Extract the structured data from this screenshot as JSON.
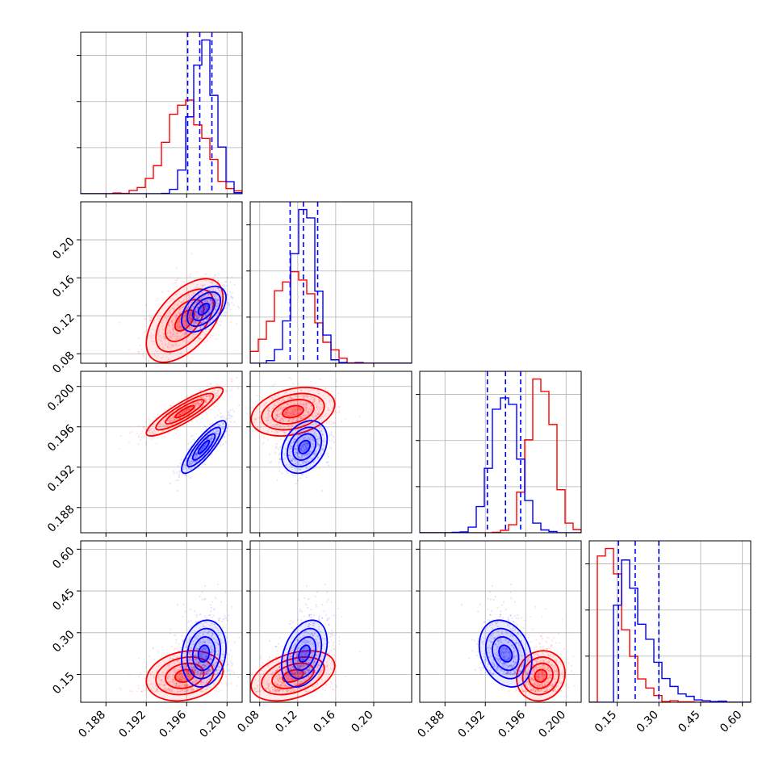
{
  "colors": {
    "red": "#ff0000",
    "blue": "#0000ff",
    "grid": "#b0b0b0",
    "axis": "#000000"
  },
  "chart_data": {
    "type": "corner",
    "grid": true,
    "dimensions": [
      {
        "id": "p1",
        "range": [
          0.1855,
          0.2015
        ],
        "ticks": [
          0.188,
          0.192,
          0.196,
          0.2
        ],
        "tick_labels": [
          "0.188",
          "0.192",
          "0.196",
          "0.200"
        ]
      },
      {
        "id": "p2",
        "range": [
          0.07,
          0.24
        ],
        "ticks": [
          0.08,
          0.12,
          0.16,
          0.2
        ],
        "tick_labels": [
          "0.08",
          "0.12",
          "0.16",
          "0.20"
        ]
      },
      {
        "id": "p3",
        "range": [
          0.1855,
          0.2015
        ],
        "ticks": [
          0.188,
          0.192,
          0.196,
          0.2
        ],
        "tick_labels": [
          "0.188",
          "0.192",
          "0.196",
          "0.200"
        ]
      },
      {
        "id": "p4",
        "range": [
          0.05,
          0.63
        ],
        "ticks": [
          0.15,
          0.3,
          0.45,
          0.6
        ],
        "tick_labels": [
          "0.15",
          "0.30",
          "0.45",
          "0.60"
        ]
      }
    ],
    "series": [
      {
        "color": "red",
        "means": [
          0.1958,
          0.115,
          0.1975,
          0.145
        ],
        "sds": [
          0.0019,
          0.022,
          0.0012,
          0.045
        ],
        "correlations": {
          "0-1": 0.55,
          "0-2": 0.88,
          "0-3": 0.2,
          "1-2": 0.3,
          "1-3": 0.4,
          "2-3": 0.1
        }
      },
      {
        "color": "blue",
        "means": [
          0.1977,
          0.127,
          0.194,
          0.225
        ],
        "sds": [
          0.0011,
          0.012,
          0.0013,
          0.06
        ],
        "correlations": {
          "0-1": 0.5,
          "0-2": 0.85,
          "0-3": 0.15,
          "1-2": 0.3,
          "1-3": 0.35,
          "2-3": -0.25
        }
      }
    ],
    "quantile_lines": {
      "color": "blue",
      "values": [
        [
          0.1961,
          0.1973,
          0.1985
        ],
        [
          0.112,
          0.126,
          0.141
        ],
        [
          0.1922,
          0.194,
          0.1955
        ],
        [
          0.155,
          0.215,
          0.3
        ]
      ]
    }
  }
}
